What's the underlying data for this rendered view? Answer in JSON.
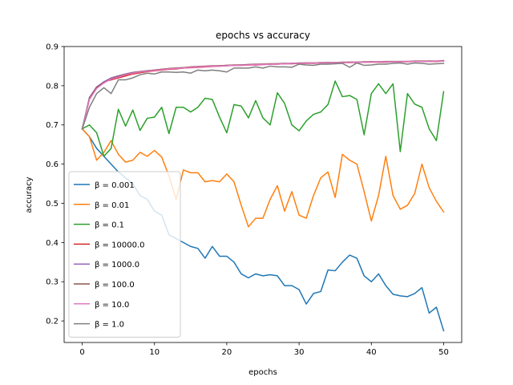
{
  "chart_data": {
    "type": "line",
    "title": "epochs vs accuracy",
    "xlabel": "epochs",
    "ylabel": "accuracy",
    "xlim": [
      -2.5,
      52.5
    ],
    "ylim": [
      0.145,
      0.9
    ],
    "xticks": [
      0,
      10,
      20,
      30,
      40,
      50
    ],
    "yticks": [
      0.2,
      0.3,
      0.4,
      0.5,
      0.6,
      0.7,
      0.8,
      0.9
    ],
    "legend_position": "lower-left",
    "grid": false,
    "x": [
      0,
      1,
      2,
      3,
      4,
      5,
      6,
      7,
      8,
      9,
      10,
      11,
      12,
      13,
      14,
      15,
      16,
      17,
      18,
      19,
      20,
      21,
      22,
      23,
      24,
      25,
      26,
      27,
      28,
      29,
      30,
      31,
      32,
      33,
      34,
      35,
      36,
      37,
      38,
      39,
      40,
      41,
      42,
      43,
      44,
      45,
      46,
      47,
      48,
      49,
      50
    ],
    "series": [
      {
        "name": "β = 0.001",
        "color": "#1f77b4",
        "values": [
          0.69,
          0.67,
          0.64,
          0.62,
          0.6,
          0.58,
          0.565,
          0.55,
          0.52,
          0.51,
          0.48,
          0.47,
          0.42,
          0.41,
          0.4,
          0.39,
          0.385,
          0.36,
          0.39,
          0.365,
          0.365,
          0.35,
          0.32,
          0.31,
          0.32,
          0.315,
          0.318,
          0.315,
          0.29,
          0.29,
          0.28,
          0.243,
          0.27,
          0.275,
          0.33,
          0.328,
          0.35,
          0.368,
          0.36,
          0.315,
          0.3,
          0.32,
          0.29,
          0.268,
          0.264,
          0.262,
          0.27,
          0.285,
          0.22,
          0.235,
          0.175
        ]
      },
      {
        "name": "β = 0.01",
        "color": "#ff7f0e",
        "values": [
          0.69,
          0.67,
          0.61,
          0.63,
          0.66,
          0.625,
          0.605,
          0.61,
          0.63,
          0.62,
          0.635,
          0.618,
          0.57,
          0.51,
          0.585,
          0.578,
          0.578,
          0.555,
          0.558,
          0.555,
          0.575,
          0.555,
          0.495,
          0.44,
          0.462,
          0.462,
          0.51,
          0.545,
          0.48,
          0.53,
          0.47,
          0.462,
          0.52,
          0.565,
          0.58,
          0.515,
          0.625,
          0.61,
          0.6,
          0.53,
          0.455,
          0.52,
          0.62,
          0.52,
          0.485,
          0.495,
          0.525,
          0.6,
          0.54,
          0.505,
          0.478
        ]
      },
      {
        "name": "β = 0.1",
        "color": "#2ca02c",
        "values": [
          0.69,
          0.7,
          0.68,
          0.62,
          0.64,
          0.74,
          0.697,
          0.738,
          0.686,
          0.717,
          0.72,
          0.745,
          0.678,
          0.745,
          0.745,
          0.733,
          0.745,
          0.768,
          0.765,
          0.72,
          0.68,
          0.752,
          0.748,
          0.718,
          0.762,
          0.718,
          0.7,
          0.782,
          0.755,
          0.7,
          0.685,
          0.71,
          0.727,
          0.733,
          0.752,
          0.812,
          0.772,
          0.775,
          0.765,
          0.675,
          0.78,
          0.805,
          0.78,
          0.805,
          0.632,
          0.78,
          0.753,
          0.745,
          0.69,
          0.66,
          0.785
        ]
      },
      {
        "name": "β = 10000.0",
        "color": "#d62728",
        "values": [
          0.69,
          0.765,
          0.795,
          0.81,
          0.815,
          0.82,
          0.825,
          0.83,
          0.833,
          0.836,
          0.838,
          0.84,
          0.842,
          0.843,
          0.845,
          0.846,
          0.847,
          0.848,
          0.849,
          0.85,
          0.851,
          0.852,
          0.852,
          0.853,
          0.853,
          0.854,
          0.855,
          0.855,
          0.856,
          0.856,
          0.857,
          0.857,
          0.857,
          0.858,
          0.858,
          0.858,
          0.859,
          0.859,
          0.859,
          0.86,
          0.86,
          0.86,
          0.86,
          0.861,
          0.861,
          0.861,
          0.862,
          0.862,
          0.862,
          0.862,
          0.863
        ]
      },
      {
        "name": "β = 1000.0",
        "color": "#9467bd",
        "values": [
          0.69,
          0.77,
          0.797,
          0.81,
          0.82,
          0.825,
          0.83,
          0.834,
          0.836,
          0.838,
          0.84,
          0.842,
          0.843,
          0.845,
          0.846,
          0.847,
          0.848,
          0.849,
          0.85,
          0.851,
          0.852,
          0.852,
          0.853,
          0.854,
          0.854,
          0.855,
          0.855,
          0.856,
          0.856,
          0.857,
          0.857,
          0.858,
          0.858,
          0.858,
          0.859,
          0.859,
          0.859,
          0.86,
          0.86,
          0.86,
          0.861,
          0.861,
          0.861,
          0.861,
          0.862,
          0.862,
          0.862,
          0.862,
          0.863,
          0.863,
          0.863
        ]
      },
      {
        "name": "β = 100.0",
        "color": "#8c564b",
        "values": [
          0.69,
          0.768,
          0.796,
          0.808,
          0.818,
          0.824,
          0.829,
          0.833,
          0.836,
          0.838,
          0.84,
          0.842,
          0.844,
          0.845,
          0.846,
          0.848,
          0.849,
          0.85,
          0.851,
          0.851,
          0.852,
          0.853,
          0.853,
          0.854,
          0.855,
          0.855,
          0.856,
          0.856,
          0.857,
          0.857,
          0.858,
          0.858,
          0.858,
          0.859,
          0.859,
          0.859,
          0.86,
          0.86,
          0.86,
          0.861,
          0.861,
          0.861,
          0.862,
          0.862,
          0.862,
          0.862,
          0.863,
          0.863,
          0.863,
          0.863,
          0.864
        ]
      },
      {
        "name": "β = 10.0",
        "color": "#e377c2",
        "values": [
          0.69,
          0.765,
          0.793,
          0.807,
          0.817,
          0.822,
          0.828,
          0.832,
          0.835,
          0.837,
          0.839,
          0.841,
          0.843,
          0.844,
          0.845,
          0.847,
          0.848,
          0.849,
          0.85,
          0.85,
          0.851,
          0.852,
          0.852,
          0.853,
          0.854,
          0.854,
          0.855,
          0.855,
          0.856,
          0.857,
          0.857,
          0.857,
          0.858,
          0.858,
          0.858,
          0.859,
          0.859,
          0.859,
          0.86,
          0.86,
          0.86,
          0.861,
          0.861,
          0.861,
          0.861,
          0.862,
          0.862,
          0.862,
          0.862,
          0.863,
          0.863
        ]
      },
      {
        "name": "β = 1.0",
        "color": "#7f7f7f",
        "values": [
          0.69,
          0.745,
          0.78,
          0.795,
          0.78,
          0.815,
          0.815,
          0.82,
          0.828,
          0.832,
          0.83,
          0.835,
          0.835,
          0.834,
          0.835,
          0.832,
          0.84,
          0.838,
          0.84,
          0.838,
          0.835,
          0.845,
          0.845,
          0.845,
          0.848,
          0.845,
          0.85,
          0.848,
          0.848,
          0.847,
          0.855,
          0.853,
          0.852,
          0.855,
          0.855,
          0.856,
          0.857,
          0.847,
          0.858,
          0.852,
          0.853,
          0.855,
          0.855,
          0.857,
          0.858,
          0.855,
          0.858,
          0.857,
          0.855,
          0.856,
          0.857
        ]
      }
    ]
  }
}
